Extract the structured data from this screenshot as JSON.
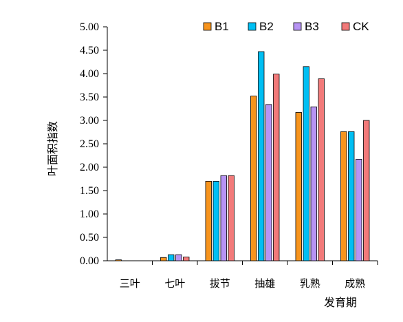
{
  "chart_data": {
    "type": "bar",
    "title": "",
    "ylabel": "叶面积指数",
    "xlabel": "发育期",
    "ylim": [
      0,
      5
    ],
    "ytick_step": 0.5,
    "ytick_labels": [
      "0.00",
      "0.50",
      "1.00",
      "1.50",
      "2.00",
      "2.50",
      "3.00",
      "3.50",
      "4.00",
      "4.50",
      "5.00"
    ],
    "categories": [
      "三叶",
      "七叶",
      "拔节",
      "抽雄",
      "乳熟",
      "成熟"
    ],
    "legend_position": "top-right",
    "grid": false,
    "series": [
      {
        "name": "B1",
        "color": "#F7941D",
        "values": [
          0.02,
          0.07,
          1.7,
          3.52,
          3.17,
          2.76
        ]
      },
      {
        "name": "B2",
        "color": "#00BFF3",
        "values": [
          0.0,
          0.13,
          1.7,
          4.47,
          4.15,
          2.76
        ]
      },
      {
        "name": "B3",
        "color": "#B794F4",
        "values": [
          0.0,
          0.13,
          1.82,
          3.34,
          3.29,
          2.17
        ]
      },
      {
        "name": "CK",
        "color": "#F27A7A",
        "values": [
          0.0,
          0.08,
          1.82,
          3.99,
          3.89,
          3.0
        ]
      }
    ]
  }
}
